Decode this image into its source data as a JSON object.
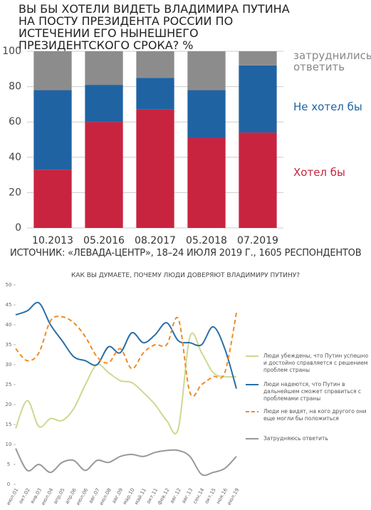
{
  "chart_data": [
    {
      "type": "stacked-bar",
      "title": "ВЫ БЫ ХОТЕЛИ ВИДЕТЬ ВЛАДИМИРА ПУТИНА НА ПОСТУ ПРЕЗИДЕНТА РОССИИ ПО ИСТЕЧЕНИИ ЕГО НЫНЕШНЕГО ПРЕЗИДЕНТСКОГО СРОКА? %",
      "source": "ИСТОЧНИК: «ЛЕВАДА-ЦЕНТР», 18–24 ИЮЛЯ 2019 Г., 1605 РЕСПОНДЕНТОВ",
      "categories": [
        "10.2013",
        "05.2016",
        "08.2017",
        "05.2018",
        "07.2019"
      ],
      "series": [
        {
          "name": "Хотел бы",
          "color": "#c8243f",
          "values": [
            33,
            60,
            67,
            51,
            54
          ]
        },
        {
          "name": "Не хотел бы",
          "color": "#1f63a3",
          "values": [
            45,
            21,
            18,
            27,
            38
          ]
        },
        {
          "name": "затруднились ответить",
          "color": "#8c8c8c",
          "values": [
            22,
            19,
            15,
            22,
            8
          ]
        }
      ],
      "ylim": [
        0,
        100
      ],
      "yticks": [
        0,
        20,
        40,
        60,
        80,
        100
      ],
      "grid": true,
      "legend": "right"
    },
    {
      "type": "line",
      "title": "КАК ВЫ ДУМАЕТЕ, ПОЧЕМУ ЛЮДИ ДОВЕРЯЮТ ВЛАДИМИРУ ПУТИНУ?",
      "categories": [
        "июл.01",
        "окт.02",
        "янв.03",
        "июл.04",
        "апр.05",
        "апр.06",
        "июл.06",
        "авг.07",
        "июл.08",
        "авг.09",
        "мар.10",
        "май.11",
        "окт.11",
        "фев.12",
        "авг.12",
        "авг.13",
        "сен.14",
        "окт.15",
        "ноя.16",
        "июл.19"
      ],
      "series": [
        {
          "name": "Люди убеждены, что Путин успешно и достойно справляется с решением проблем страны",
          "color": "#cfd88f",
          "dashed": false,
          "values": [
            14,
            21,
            14.5,
            16.5,
            16,
            19,
            25,
            30,
            28,
            26,
            25.5,
            23,
            20,
            16,
            14,
            37,
            33,
            28,
            27,
            27
          ]
        },
        {
          "name": "Люди надеются, что Путин в дальнейшем сможет справиться с проблемами страны",
          "color": "#2a6ea8",
          "dashed": false,
          "values": [
            42.5,
            43.5,
            45.5,
            40,
            36,
            32,
            31,
            30,
            34.5,
            33,
            38,
            35.5,
            37.5,
            40.5,
            36,
            35.5,
            35,
            39.5,
            34,
            24
          ]
        },
        {
          "name": "Люди не видят, на кого другого они еще могли бы положиться",
          "color": "#f08a24",
          "dashed": true,
          "values": [
            34,
            31,
            33,
            41,
            42,
            40.5,
            37,
            32,
            30.5,
            34,
            29,
            33,
            35,
            35,
            41.5,
            23,
            25,
            27,
            28,
            43
          ]
        },
        {
          "name": "Затрудняюсь ответить",
          "color": "#999999",
          "dashed": false,
          "values": [
            9,
            3.5,
            5,
            3,
            5.5,
            6,
            3.5,
            6,
            5.5,
            7,
            7.5,
            7,
            8,
            8.5,
            8.5,
            7,
            2.5,
            3,
            4,
            7
          ]
        }
      ],
      "ylim": [
        0,
        50
      ],
      "yticks": [
        0,
        5,
        10,
        15,
        20,
        25,
        30,
        35,
        40,
        45,
        50
      ],
      "legend": "right"
    }
  ]
}
